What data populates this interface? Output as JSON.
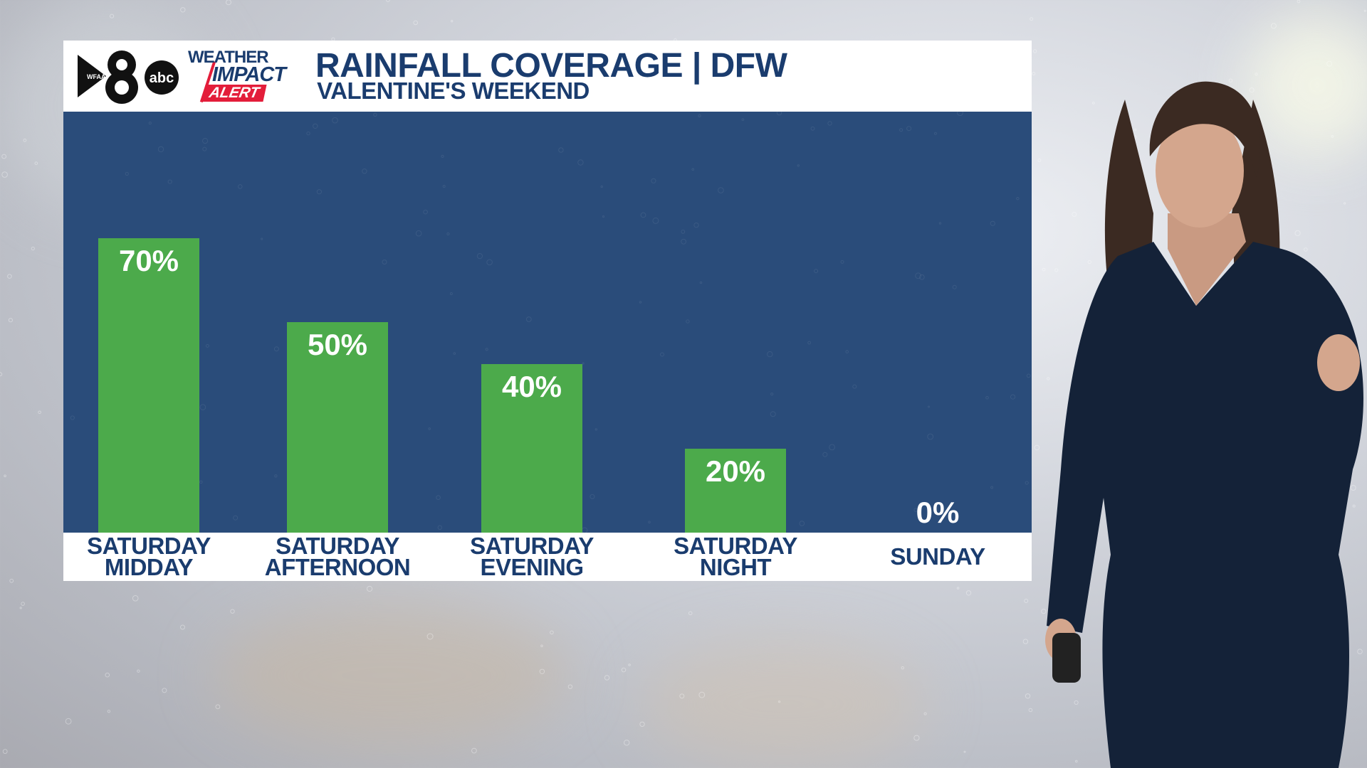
{
  "header": {
    "station_logo": {
      "number": "8",
      "call_letters": "WFAA",
      "network": "abc"
    },
    "impact_logo": {
      "line1": "WEATHER",
      "line2": "IMPACT",
      "line3": "ALERT"
    }
  },
  "colors": {
    "header_text": "#1a3c6e",
    "plot_background": "#2a4c7a",
    "bar": "#4caa4b",
    "alert_red": "#e31d3a"
  },
  "chart_data": {
    "type": "bar",
    "title": "RAINFALL COVERAGE | DFW",
    "subtitle": "VALENTINE'S WEEKEND",
    "categories": [
      [
        "SATURDAY",
        "MIDDAY"
      ],
      [
        "SATURDAY",
        "AFTERNOON"
      ],
      [
        "SATURDAY",
        "EVENING"
      ],
      [
        "SATURDAY",
        "NIGHT"
      ],
      [
        "SUNDAY"
      ]
    ],
    "values": [
      70,
      50,
      40,
      20,
      0
    ],
    "value_labels": [
      "70%",
      "50%",
      "40%",
      "20%",
      "0%"
    ],
    "ylim": [
      0,
      100
    ],
    "grid": false,
    "legend": "none"
  }
}
